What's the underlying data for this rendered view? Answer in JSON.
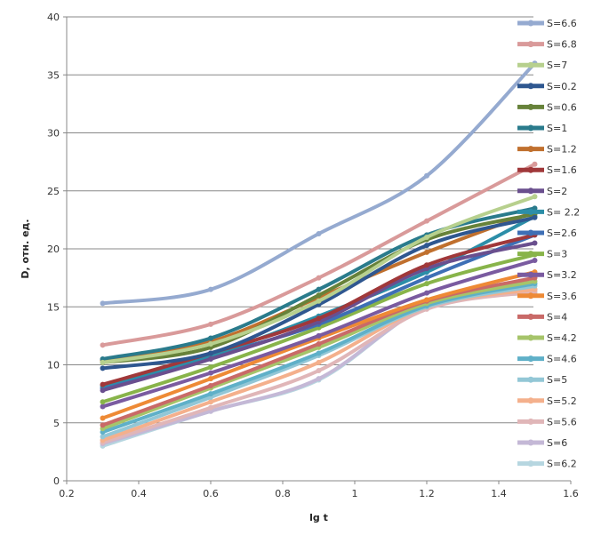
{
  "chart_data": {
    "type": "line",
    "title": "",
    "xlabel": "lg t",
    "ylabel": "D, отн. ед.",
    "xlim": [
      0.2,
      1.6
    ],
    "ylim": [
      0,
      40
    ],
    "xticks": [
      "0.2",
      "0.4",
      "0.6",
      "0.8",
      "1",
      "1.2",
      "1.4",
      "1.6"
    ],
    "yticks": [
      "0",
      "5",
      "10",
      "15",
      "20",
      "25",
      "30",
      "35",
      "40"
    ],
    "grid": "horizontal",
    "legend_position": "right",
    "x": [
      0.3,
      0.6,
      0.9,
      1.2,
      1.5
    ],
    "series": [
      {
        "name": "S=6.6",
        "color": "#95aad0",
        "values": [
          15.3,
          16.5,
          21.3,
          26.3,
          36.0
        ]
      },
      {
        "name": "S=6.8",
        "color": "#d99a9a",
        "values": [
          11.7,
          13.5,
          17.5,
          22.4,
          27.3
        ]
      },
      {
        "name": "S=7",
        "color": "#b7d08e",
        "values": [
          10.2,
          11.8,
          15.5,
          21.0,
          24.5
        ]
      },
      {
        "name": "S=0.2",
        "color": "#2f5790",
        "values": [
          9.7,
          11.0,
          15.2,
          20.3,
          22.7
        ]
      },
      {
        "name": "S=0.6",
        "color": "#67823a",
        "values": [
          10.2,
          11.5,
          16.0,
          20.8,
          23.0
        ]
      },
      {
        "name": "S=1",
        "color": "#2a7b8c",
        "values": [
          10.5,
          12.3,
          16.5,
          21.2,
          23.5
        ]
      },
      {
        "name": "S=1.2",
        "color": "#c0702e",
        "values": [
          10.4,
          12.0,
          15.8,
          19.7,
          23.2
        ]
      },
      {
        "name": "S=1.6",
        "color": "#a0383a",
        "values": [
          8.3,
          11.0,
          14.0,
          18.6,
          21.2
        ]
      },
      {
        "name": "S=2",
        "color": "#6a4f8e",
        "values": [
          7.8,
          10.5,
          13.7,
          18.3,
          20.5
        ]
      },
      {
        "name": "S= 2.2",
        "color": "#2c8ea8",
        "values": [
          8.2,
          10.8,
          14.2,
          18.0,
          22.8
        ]
      },
      {
        "name": "S=2.6",
        "color": "#3e6fb5",
        "values": [
          8.0,
          10.7,
          13.5,
          17.5,
          21.2
        ]
      },
      {
        "name": "S=3",
        "color": "#88b44a",
        "values": [
          6.8,
          9.8,
          13.2,
          17.0,
          19.5
        ]
      },
      {
        "name": "S=3.2",
        "color": "#7a5ba0",
        "values": [
          6.4,
          9.3,
          12.5,
          16.2,
          19.0
        ]
      },
      {
        "name": "S=3.6",
        "color": "#ee8a35",
        "values": [
          5.4,
          8.8,
          12.3,
          15.6,
          18.0
        ]
      },
      {
        "name": "S=4",
        "color": "#c96a68",
        "values": [
          4.8,
          8.2,
          11.8,
          15.5,
          17.5
        ]
      },
      {
        "name": "S=4.2",
        "color": "#a6c46a",
        "values": [
          4.5,
          8.0,
          11.5,
          15.3,
          17.2
        ]
      },
      {
        "name": "S=4.6",
        "color": "#5fb0c8",
        "values": [
          4.2,
          7.5,
          11.0,
          15.1,
          17.0
        ]
      },
      {
        "name": "S=5",
        "color": "#93c7d6",
        "values": [
          3.8,
          7.2,
          10.8,
          15.0,
          16.8
        ]
      },
      {
        "name": "S=5.2",
        "color": "#f4b08c",
        "values": [
          3.5,
          6.8,
          10.2,
          15.0,
          16.5
        ]
      },
      {
        "name": "S=5.6",
        "color": "#e0b6b8",
        "values": [
          3.3,
          6.3,
          9.5,
          14.8,
          16.3
        ]
      },
      {
        "name": "S=6",
        "color": "#c4b8d6",
        "values": [
          3.2,
          6.0,
          8.8,
          15.0,
          16.5
        ]
      },
      {
        "name": "S=6.2",
        "color": "#b6d6e0",
        "values": [
          3.0,
          6.0,
          8.7,
          15.0,
          16.2
        ]
      }
    ]
  }
}
